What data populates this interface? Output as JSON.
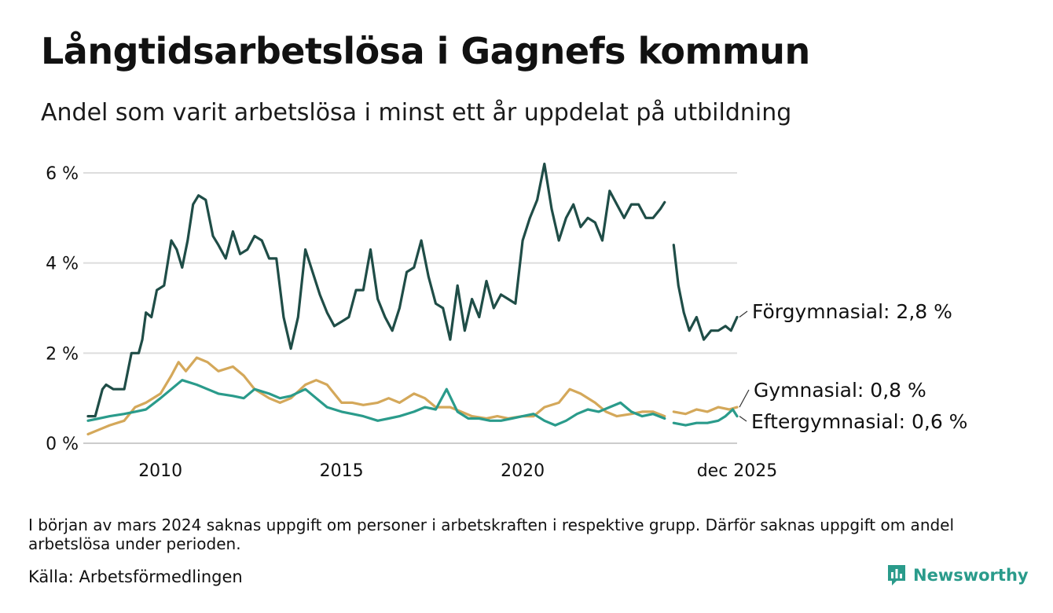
{
  "header": {
    "title": "Långtidsarbetslösa i Gagnefs kommun",
    "subtitle": "Andel som varit arbetslösa i minst ett år uppdelat på utbildning"
  },
  "footer": {
    "note": "I början av mars 2024 saknas uppgift om personer i arbetskraften i respektive grupp. Därför saknas uppgift om andel arbetslösa under perioden.",
    "source": "Källa: Arbetsförmedlingen",
    "brand": "Newsworthy"
  },
  "colors": {
    "forgymnasial": "#1f4d47",
    "gymnasial": "#d4a85a",
    "eftergymnasial": "#2a9b8b",
    "grid": "#dddddd",
    "brand": "#2a9b8b"
  },
  "chart_data": {
    "type": "line",
    "title": "Långtidsarbetslösa i Gagnefs kommun",
    "subtitle": "Andel som varit arbetslösa i minst ett år uppdelat på utbildning",
    "xlabel": "",
    "ylabel": "",
    "x_range": [
      2008.0,
      2025.92
    ],
    "ylim": [
      0,
      6
    ],
    "y_ticks": [
      0,
      2,
      4,
      6
    ],
    "y_tick_labels": [
      "0 %",
      "2 %",
      "4 %",
      "6 %"
    ],
    "x_ticks": [
      2010,
      2015,
      2020,
      2025.92
    ],
    "x_tick_labels": [
      "2010",
      "2015",
      "2020",
      "dec 2025"
    ],
    "gap": [
      2024.0,
      2024.17
    ],
    "series": [
      {
        "name": "Förgymnasial",
        "end_label": "Förgymnasial: 2,8 %",
        "color": "#1f4d47",
        "x": [
          2008.0,
          2008.2,
          2008.4,
          2008.5,
          2008.7,
          2009.0,
          2009.2,
          2009.4,
          2009.5,
          2009.6,
          2009.75,
          2009.9,
          2010.1,
          2010.3,
          2010.45,
          2010.6,
          2010.75,
          2010.9,
          2011.05,
          2011.25,
          2011.45,
          2011.6,
          2011.8,
          2012.0,
          2012.2,
          2012.4,
          2012.6,
          2012.8,
          2013.0,
          2013.2,
          2013.4,
          2013.6,
          2013.8,
          2014.0,
          2014.2,
          2014.4,
          2014.6,
          2014.8,
          2015.0,
          2015.2,
          2015.4,
          2015.6,
          2015.8,
          2016.0,
          2016.2,
          2016.4,
          2016.6,
          2016.8,
          2017.0,
          2017.2,
          2017.4,
          2017.6,
          2017.8,
          2018.0,
          2018.2,
          2018.4,
          2018.6,
          2018.8,
          2019.0,
          2019.2,
          2019.4,
          2019.6,
          2019.8,
          2020.0,
          2020.2,
          2020.4,
          2020.6,
          2020.8,
          2021.0,
          2021.2,
          2021.4,
          2021.6,
          2021.8,
          2022.0,
          2022.2,
          2022.4,
          2022.6,
          2022.8,
          2023.0,
          2023.2,
          2023.4,
          2023.6,
          2023.8,
          2023.92,
          null,
          2024.17,
          2024.3,
          2024.45,
          2024.6,
          2024.8,
          2025.0,
          2025.2,
          2025.4,
          2025.6,
          2025.75,
          2025.92
        ],
        "values": [
          0.6,
          0.6,
          1.2,
          1.3,
          1.2,
          1.2,
          2.0,
          2.0,
          2.3,
          2.9,
          2.8,
          3.4,
          3.5,
          4.5,
          4.3,
          3.9,
          4.5,
          5.3,
          5.5,
          5.4,
          4.6,
          4.4,
          4.1,
          4.7,
          4.2,
          4.3,
          4.6,
          4.5,
          4.1,
          4.1,
          2.8,
          2.1,
          2.8,
          4.3,
          3.8,
          3.3,
          2.9,
          2.6,
          2.7,
          2.8,
          3.4,
          3.4,
          4.3,
          3.2,
          2.8,
          2.5,
          3.0,
          3.8,
          3.9,
          4.5,
          3.7,
          3.1,
          3.0,
          2.3,
          3.5,
          2.5,
          3.2,
          2.8,
          3.6,
          3.0,
          3.3,
          3.2,
          3.1,
          4.5,
          5.0,
          5.4,
          6.2,
          5.2,
          4.5,
          5.0,
          5.3,
          4.8,
          5.0,
          4.9,
          4.5,
          5.6,
          5.3,
          5.0,
          5.3,
          5.3,
          5.0,
          5.0,
          5.2,
          5.35,
          null,
          4.4,
          3.5,
          2.9,
          2.5,
          2.8,
          2.3,
          2.5,
          2.5,
          2.6,
          2.5,
          2.8
        ]
      },
      {
        "name": "Gymnasial",
        "end_label": "Gymnasial: 0,8 %",
        "color": "#d4a85a",
        "x": [
          2008.0,
          2008.3,
          2008.6,
          2009.0,
          2009.3,
          2009.6,
          2010.0,
          2010.3,
          2010.5,
          2010.7,
          2011.0,
          2011.3,
          2011.6,
          2012.0,
          2012.3,
          2012.6,
          2013.0,
          2013.3,
          2013.6,
          2014.0,
          2014.3,
          2014.6,
          2015.0,
          2015.3,
          2015.6,
          2016.0,
          2016.3,
          2016.6,
          2017.0,
          2017.3,
          2017.6,
          2018.0,
          2018.3,
          2018.6,
          2019.0,
          2019.3,
          2019.6,
          2020.0,
          2020.3,
          2020.6,
          2021.0,
          2021.3,
          2021.6,
          2022.0,
          2022.3,
          2022.6,
          2023.0,
          2023.3,
          2023.6,
          2023.92,
          null,
          2024.17,
          2024.5,
          2024.8,
          2025.1,
          2025.4,
          2025.7,
          2025.92
        ],
        "values": [
          0.2,
          0.3,
          0.4,
          0.5,
          0.8,
          0.9,
          1.1,
          1.5,
          1.8,
          1.6,
          1.9,
          1.8,
          1.6,
          1.7,
          1.5,
          1.2,
          1.0,
          0.9,
          1.0,
          1.3,
          1.4,
          1.3,
          0.9,
          0.9,
          0.85,
          0.9,
          1.0,
          0.9,
          1.1,
          1.0,
          0.8,
          0.8,
          0.7,
          0.6,
          0.55,
          0.6,
          0.55,
          0.6,
          0.6,
          0.8,
          0.9,
          1.2,
          1.1,
          0.9,
          0.7,
          0.6,
          0.65,
          0.7,
          0.7,
          0.6,
          null,
          0.7,
          0.65,
          0.75,
          0.7,
          0.8,
          0.75,
          0.8
        ]
      },
      {
        "name": "Eftergymnasial",
        "end_label": "Eftergymnasial: 0,6 %",
        "color": "#2a9b8b",
        "x": [
          2008.0,
          2008.3,
          2008.6,
          2009.0,
          2009.3,
          2009.6,
          2010.0,
          2010.3,
          2010.6,
          2011.0,
          2011.3,
          2011.6,
          2012.0,
          2012.3,
          2012.6,
          2013.0,
          2013.3,
          2013.6,
          2014.0,
          2014.3,
          2014.6,
          2015.0,
          2015.3,
          2015.6,
          2016.0,
          2016.3,
          2016.6,
          2017.0,
          2017.3,
          2017.6,
          2017.9,
          2018.2,
          2018.5,
          2018.8,
          2019.1,
          2019.4,
          2019.7,
          2020.0,
          2020.3,
          2020.6,
          2020.9,
          2021.2,
          2021.5,
          2021.8,
          2022.1,
          2022.4,
          2022.7,
          2023.0,
          2023.3,
          2023.6,
          2023.92,
          null,
          2024.17,
          2024.5,
          2024.8,
          2025.1,
          2025.4,
          2025.6,
          2025.8,
          2025.92
        ],
        "values": [
          0.5,
          0.55,
          0.6,
          0.65,
          0.7,
          0.75,
          1.0,
          1.2,
          1.4,
          1.3,
          1.2,
          1.1,
          1.05,
          1.0,
          1.2,
          1.1,
          1.0,
          1.05,
          1.2,
          1.0,
          0.8,
          0.7,
          0.65,
          0.6,
          0.5,
          0.55,
          0.6,
          0.7,
          0.8,
          0.75,
          1.2,
          0.7,
          0.55,
          0.55,
          0.5,
          0.5,
          0.55,
          0.6,
          0.65,
          0.5,
          0.4,
          0.5,
          0.65,
          0.75,
          0.7,
          0.8,
          0.9,
          0.7,
          0.6,
          0.65,
          0.55,
          null,
          0.45,
          0.4,
          0.45,
          0.45,
          0.5,
          0.6,
          0.75,
          0.6
        ]
      }
    ]
  }
}
